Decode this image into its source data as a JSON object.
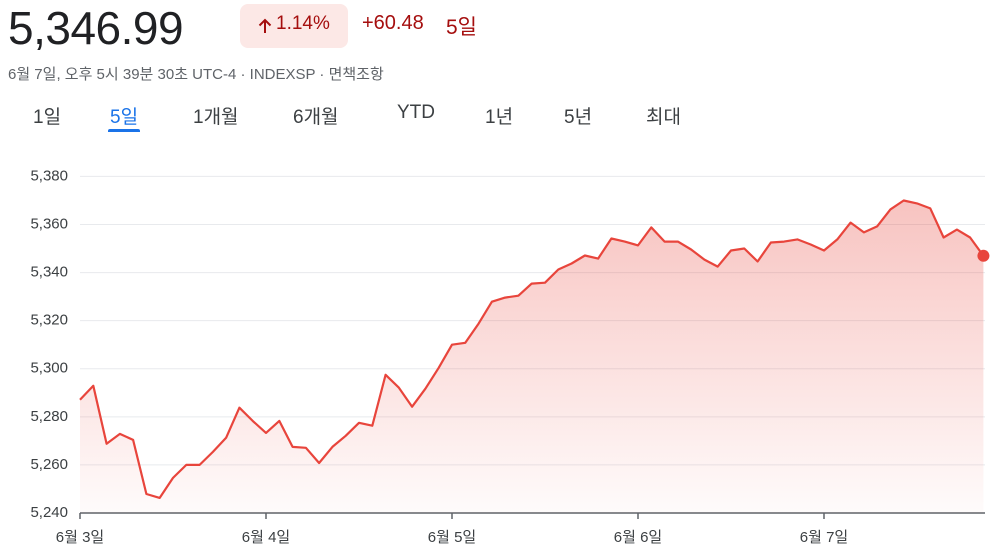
{
  "header": {
    "price": "5,346.99",
    "change_percent": "1.14%",
    "change": "+60.48",
    "period": "5일",
    "subtitle": "6월 7일, 오후 5시 39분 30초 UTC-4 · INDEXSP · 면책조항"
  },
  "tabs": {
    "items": [
      "1일",
      "5일",
      "1개월",
      "6개월",
      "YTD",
      "1년",
      "5년",
      "최대"
    ],
    "selected": 1
  },
  "chart_data": {
    "type": "line",
    "color": "#e8453c",
    "grid": true,
    "categories": [
      "6월 3일",
      null,
      null,
      null,
      null,
      null,
      null,
      null,
      null,
      null,
      null,
      null,
      null,
      null,
      "6월 4일",
      null,
      null,
      null,
      null,
      null,
      null,
      null,
      null,
      null,
      null,
      null,
      null,
      null,
      "6월 5일",
      null,
      null,
      null,
      null,
      null,
      null,
      null,
      null,
      null,
      null,
      null,
      null,
      null,
      "6월 6일",
      null,
      null,
      null,
      null,
      null,
      null,
      null,
      null,
      null,
      null,
      null,
      null,
      null,
      "6월 7일",
      null,
      null,
      null,
      null,
      null,
      null,
      null,
      null,
      null,
      null,
      null,
      null
    ],
    "values": [
      5287.1,
      5292.9,
      5268.8,
      5272.9,
      5270.4,
      5247.9,
      5246.3,
      5254.6,
      5260,
      5260,
      5265.4,
      5271.3,
      5283.8,
      5278.3,
      5273.3,
      5278.3,
      5267.5,
      5267.1,
      5260.8,
      5267.5,
      5272.1,
      5277.5,
      5276.3,
      5297.5,
      5292.1,
      5284.2,
      5291.7,
      5300.4,
      5310,
      5310.8,
      5318.8,
      5327.9,
      5329.6,
      5330.4,
      5335.4,
      5335.8,
      5341.3,
      5343.8,
      5347.1,
      5345.8,
      5354.2,
      5352.9,
      5351.3,
      5358.8,
      5352.9,
      5352.9,
      5349.6,
      5345.4,
      5342.5,
      5349.2,
      5350,
      5344.6,
      5352.5,
      5352.9,
      5353.8,
      5351.7,
      5349.2,
      5353.8,
      5360.8,
      5356.7,
      5359.2,
      5366.3,
      5370,
      5368.8,
      5366.7,
      5354.6,
      5357.9,
      5354.6,
      5347
    ],
    "ylim": [
      5240,
      5386
    ],
    "yticks": [
      {
        "value": 5240,
        "label": "5,240"
      },
      {
        "value": 5260,
        "label": "5,260"
      },
      {
        "value": 5280,
        "label": "5,280"
      },
      {
        "value": 5300,
        "label": "5,300"
      },
      {
        "value": 5320,
        "label": "5,320"
      },
      {
        "value": 5340,
        "label": "5,340"
      },
      {
        "value": 5360,
        "label": "5,360"
      },
      {
        "value": 5380,
        "label": "5,380"
      }
    ]
  }
}
